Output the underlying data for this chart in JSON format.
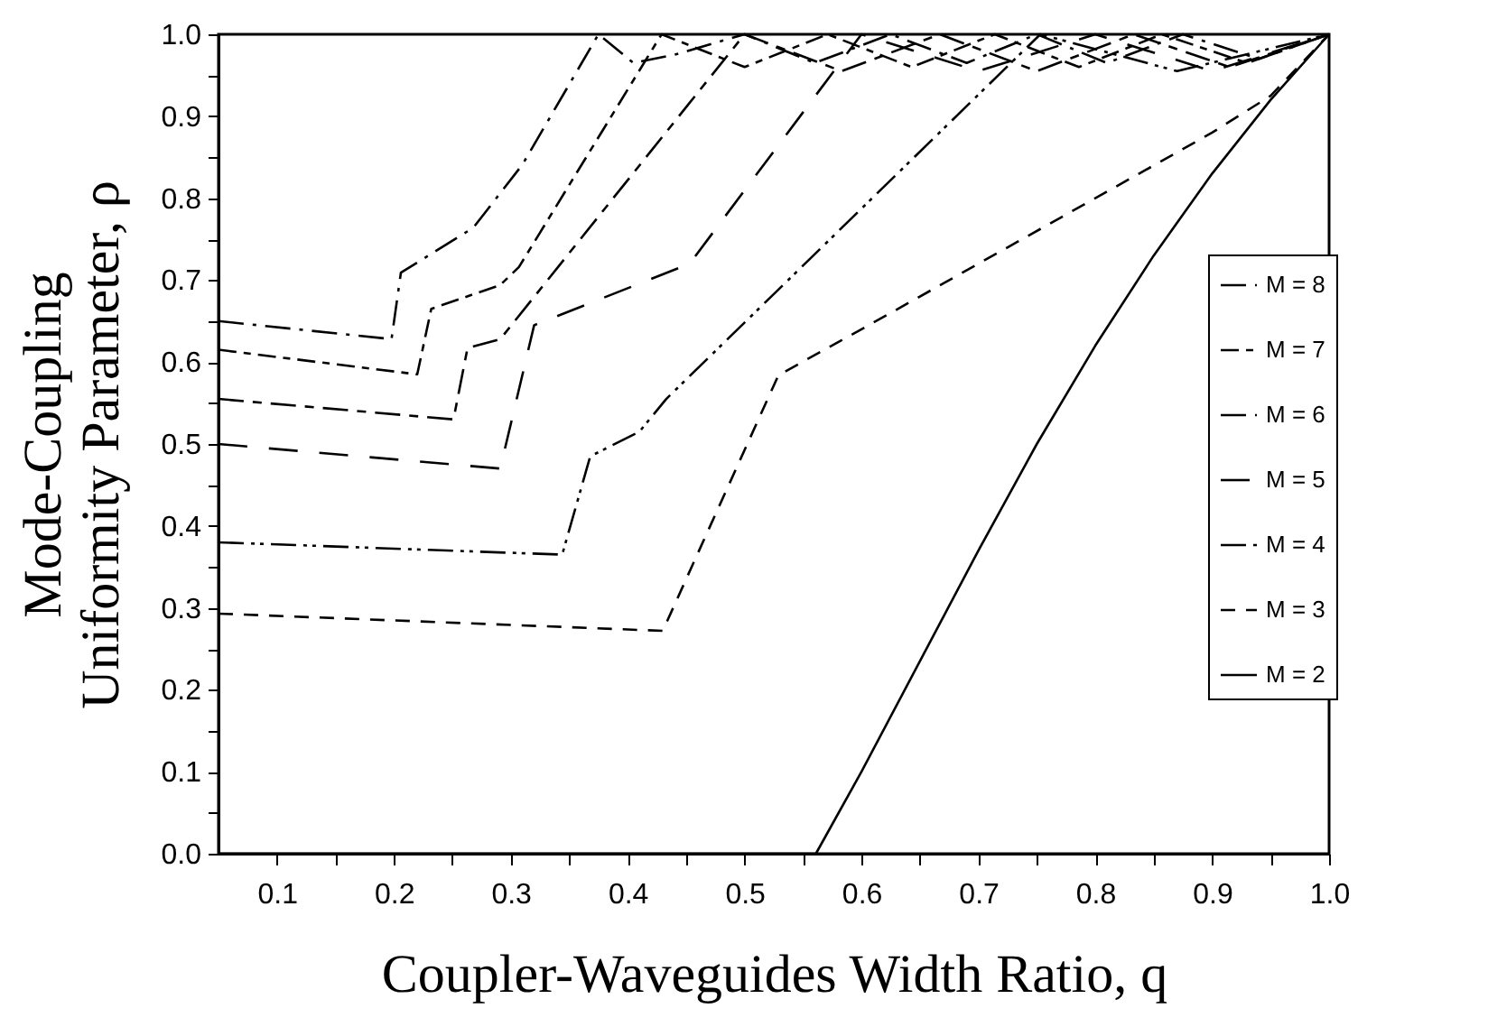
{
  "chart_data": {
    "type": "line",
    "xlabel": "Coupler-Waveguides Width Ratio, q",
    "ylabel": "Mode-Coupling Uniformity Parameter, ρ",
    "xlim": [
      0.05,
      1.0
    ],
    "ylim": [
      0,
      1.0
    ],
    "xticks": [
      {
        "value": 0.1,
        "label": "0.1"
      },
      {
        "value": 0.15,
        "label": null
      },
      {
        "value": 0.2,
        "label": "0.2"
      },
      {
        "value": 0.25,
        "label": null
      },
      {
        "value": 0.3,
        "label": "0.3"
      },
      {
        "value": 0.35,
        "label": null
      },
      {
        "value": 0.4,
        "label": "0.4"
      },
      {
        "value": 0.45,
        "label": null
      },
      {
        "value": 0.5,
        "label": "0.5"
      },
      {
        "value": 0.55,
        "label": null
      },
      {
        "value": 0.6,
        "label": "0.6"
      },
      {
        "value": 0.65,
        "label": null
      },
      {
        "value": 0.7,
        "label": "0.7"
      },
      {
        "value": 0.75,
        "label": null
      },
      {
        "value": 0.8,
        "label": "0.8"
      },
      {
        "value": 0.85,
        "label": null
      },
      {
        "value": 0.9,
        "label": "0.9"
      },
      {
        "value": 0.95,
        "label": null
      },
      {
        "value": 1.0,
        "label": "1.0"
      }
    ],
    "yticks": [
      {
        "value": 0,
        "label": "0.0"
      },
      {
        "value": 0.05,
        "label": null
      },
      {
        "value": 0.1,
        "label": "0.1"
      },
      {
        "value": 0.15,
        "label": null
      },
      {
        "value": 0.2,
        "label": "0.2"
      },
      {
        "value": 0.25,
        "label": null
      },
      {
        "value": 0.3,
        "label": "0.3"
      },
      {
        "value": 0.35,
        "label": null
      },
      {
        "value": 0.4,
        "label": "0.4"
      },
      {
        "value": 0.45,
        "label": null
      },
      {
        "value": 0.5,
        "label": "0.5"
      },
      {
        "value": 0.55,
        "label": null
      },
      {
        "value": 0.6,
        "label": "0.6"
      },
      {
        "value": 0.65,
        "label": null
      },
      {
        "value": 0.7,
        "label": "0.7"
      },
      {
        "value": 0.75,
        "label": null
      },
      {
        "value": 0.8,
        "label": "0.8"
      },
      {
        "value": 0.85,
        "label": null
      },
      {
        "value": 0.9,
        "label": "0.9"
      },
      {
        "value": 0.95,
        "label": null
      },
      {
        "value": 1.0,
        "label": "1.0"
      }
    ],
    "legend": "bottom right",
    "marker": "none",
    "series": [
      {
        "name": "M = 8",
        "color": "#000000",
        "line_style": "dashed",
        "x": [
          0.05,
          0.198,
          0.206,
          0.268,
          0.31,
          0.375,
          0.405,
          0.44,
          0.5,
          0.56,
          0.625,
          0.69,
          0.75,
          0.81,
          0.875,
          0.94,
          1.0
        ],
        "values": [
          0.65,
          0.628,
          0.709,
          0.764,
          0.841,
          1.0,
          0.965,
          0.975,
          1.0,
          0.965,
          1.0,
          0.965,
          1.0,
          0.965,
          1.0,
          0.97,
          1.0
        ]
      },
      {
        "name": "M = 7",
        "color": "#000000",
        "line_style": "dashed",
        "x": [
          0.05,
          0.22,
          0.232,
          0.291,
          0.307,
          0.429,
          0.5,
          0.571,
          0.643,
          0.714,
          0.786,
          0.857,
          0.93,
          1.0
        ],
        "values": [
          0.615,
          0.585,
          0.665,
          0.694,
          0.716,
          1.0,
          0.96,
          1.0,
          0.96,
          1.0,
          0.96,
          1.0,
          0.965,
          1.0
        ]
      },
      {
        "name": "M = 6",
        "color": "#000000",
        "line_style": "dashed",
        "x": [
          0.05,
          0.251,
          0.263,
          0.291,
          0.5,
          0.583,
          0.667,
          0.75,
          0.833,
          0.915,
          1.0
        ],
        "values": [
          0.555,
          0.53,
          0.617,
          0.628,
          1.0,
          0.955,
          1.0,
          0.955,
          1.0,
          0.96,
          1.0
        ]
      },
      {
        "name": "M = 5",
        "color": "#000000",
        "line_style": "dashed",
        "x": [
          0.05,
          0.291,
          0.32,
          0.453,
          0.6,
          0.7,
          0.8,
          0.9,
          1.0
        ],
        "values": [
          0.5,
          0.47,
          0.645,
          0.72,
          1.0,
          0.955,
          1.0,
          0.955,
          1.0
        ]
      },
      {
        "name": "M = 4",
        "color": "#000000",
        "line_style": "dashed",
        "x": [
          0.05,
          0.344,
          0.368,
          0.41,
          0.433,
          0.753,
          0.87,
          1.0
        ],
        "values": [
          0.38,
          0.365,
          0.485,
          0.515,
          0.555,
          1.0,
          0.955,
          1.0
        ]
      },
      {
        "name": "M = 3",
        "color": "#000000",
        "line_style": "dashed",
        "x": [
          0.05,
          0.43,
          0.529,
          0.6,
          0.7,
          0.8,
          0.9,
          0.95,
          1.0
        ],
        "values": [
          0.293,
          0.272,
          0.584,
          0.64,
          0.72,
          0.8,
          0.88,
          0.925,
          1.0
        ]
      },
      {
        "name": "M = 2",
        "color": "#000000",
        "line_style": "solid",
        "x": [
          0.05,
          0.561,
          0.6,
          0.65,
          0.7,
          0.75,
          0.8,
          0.85,
          0.9,
          0.95,
          1.0
        ],
        "values": [
          0,
          0,
          0.1,
          0.235,
          0.37,
          0.5,
          0.62,
          0.73,
          0.83,
          0.92,
          1.0
        ]
      }
    ]
  }
}
